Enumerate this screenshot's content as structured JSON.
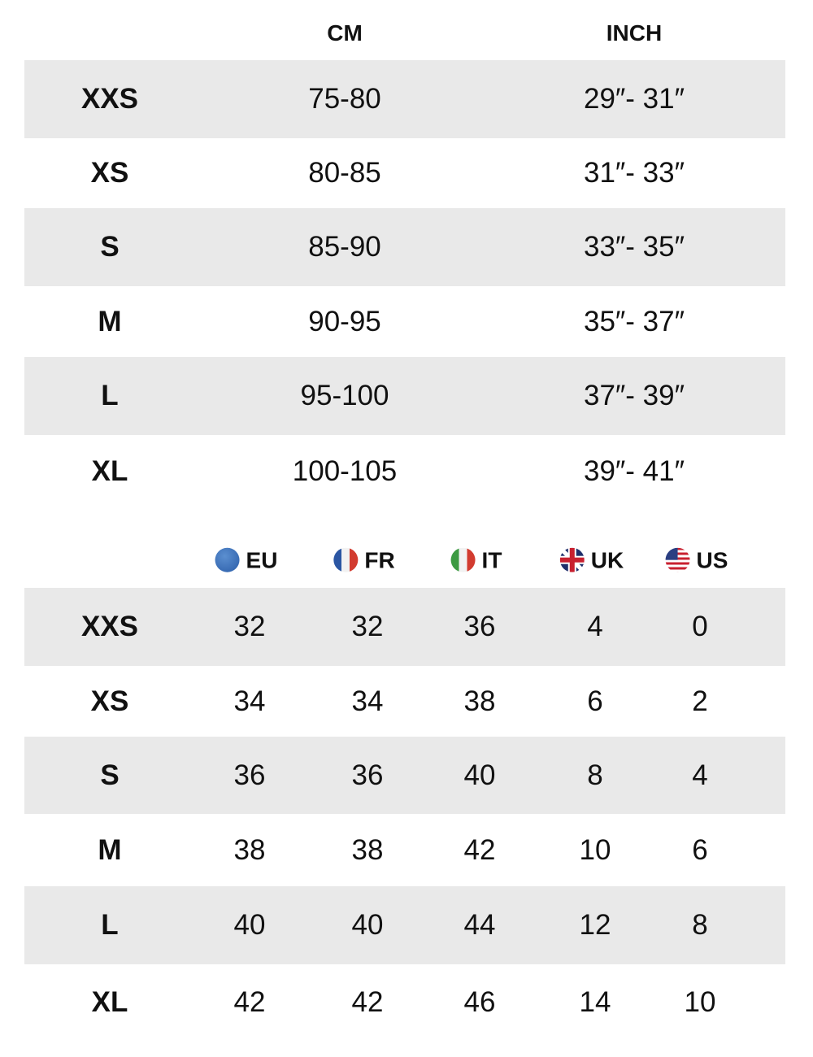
{
  "colors": {
    "row_shade": "#e9e9e9",
    "text": "#111111"
  },
  "body_table": {
    "headers": [
      "",
      "CM",
      "INCH"
    ],
    "rows": [
      [
        "XXS",
        "75-80",
        "29″- 31″"
      ],
      [
        "XS",
        "80-85",
        "31″- 33″"
      ],
      [
        "S",
        "85-90",
        "33″- 35″"
      ],
      [
        "M",
        "90-95",
        "35″- 37″"
      ],
      [
        "L",
        "95-100",
        "37″- 39″"
      ],
      [
        "XL",
        "100-105",
        "39″- 41″"
      ]
    ]
  },
  "conversion_table": {
    "headers": [
      {
        "label": "EU",
        "icon": "eu-flag-icon"
      },
      {
        "label": "FR",
        "icon": "france-flag-icon"
      },
      {
        "label": "IT",
        "icon": "italy-flag-icon"
      },
      {
        "label": "UK",
        "icon": "uk-flag-icon"
      },
      {
        "label": "US",
        "icon": "us-flag-icon"
      }
    ],
    "rows": [
      [
        "XXS",
        "32",
        "32",
        "36",
        "4",
        "0"
      ],
      [
        "XS",
        "34",
        "34",
        "38",
        "6",
        "2"
      ],
      [
        "S",
        "36",
        "36",
        "40",
        "8",
        "4"
      ],
      [
        "M",
        "38",
        "38",
        "42",
        "10",
        "6"
      ],
      [
        "L",
        "40",
        "40",
        "44",
        "12",
        "8"
      ],
      [
        "XL",
        "42",
        "42",
        "46",
        "14",
        "10"
      ]
    ]
  }
}
